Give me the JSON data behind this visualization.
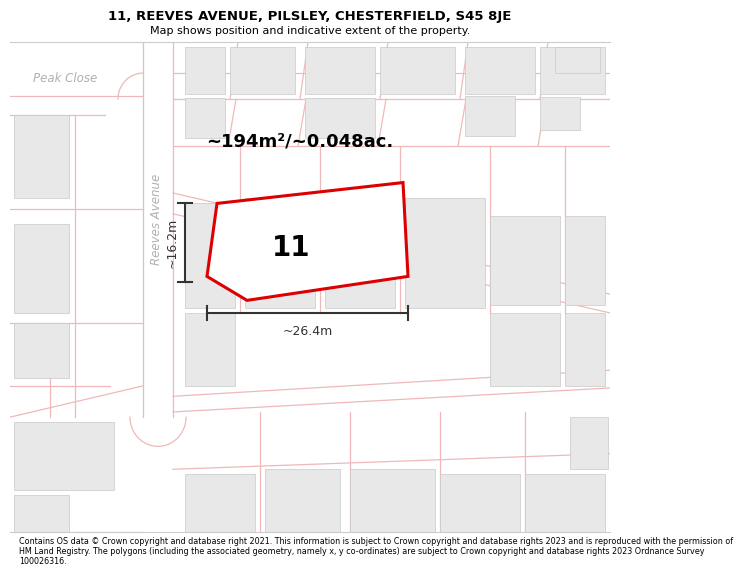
{
  "title_line1": "11, REEVES AVENUE, PILSLEY, CHESTERFIELD, S45 8JE",
  "title_line2": "Map shows position and indicative extent of the property.",
  "area_text": "~194m²/~0.048ac.",
  "property_number": "11",
  "width_label": "~26.4m",
  "height_label": "~16.2m",
  "footer_text": "Contains OS data © Crown copyright and database right 2021. This information is subject to Crown copyright and database rights 2023 and is reproduced with the permission of\nHM Land Registry. The polygons (including the associated geometry, namely x, y co-ordinates) are subject to Crown copyright and database rights 2023 Ordnance Survey\n100026316.",
  "bg_color": "#ffffff",
  "map_bg": "#ffffff",
  "road_line_color": "#f0b8b8",
  "building_fill": "#e8e8e8",
  "building_edge": "#c8c8c8",
  "property_outline_color": "#dd0000",
  "street_label_color": "#b0b0b0",
  "street_label1": "Peak Close",
  "street_label2": "Reeves Avenue",
  "dim_color": "#333333"
}
